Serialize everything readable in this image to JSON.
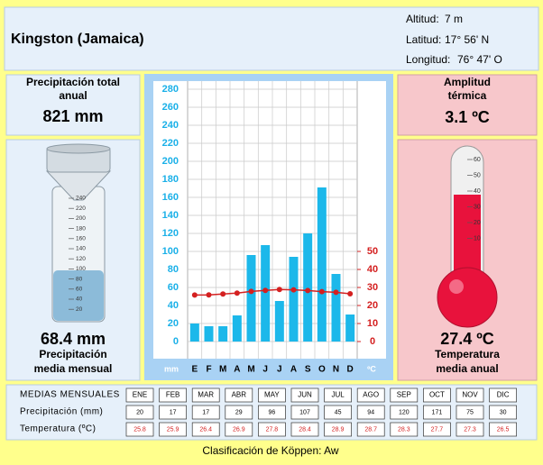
{
  "header": {
    "location": "Kingston (Jamaica)",
    "altitude_label": "Altitud:",
    "altitude": "7 m",
    "latitude_label": "Latitud:",
    "latitude": "17° 56' N",
    "longitude_label": "Longitud:",
    "longitude": "76° 47' O"
  },
  "precip_total": {
    "label_lines": [
      "Precipitación total",
      "anual"
    ],
    "value": "821 mm"
  },
  "amplitude": {
    "label_lines": [
      "Amplitud",
      "térmica"
    ],
    "value": "3.1 ºC"
  },
  "precip_mean": {
    "value": "68.4 mm",
    "label_lines": [
      "Precipitación",
      "media mensual"
    ],
    "gauge_ticks": [
      240,
      220,
      200,
      180,
      160,
      140,
      120,
      100,
      80,
      60,
      40,
      20
    ]
  },
  "temp_mean": {
    "value": "27.4 ºC",
    "label_lines": [
      "Temperatura",
      "media anual"
    ],
    "thermo_ticks": [
      60,
      50,
      40,
      30,
      20,
      10
    ]
  },
  "chart_data": {
    "type": "climograph",
    "categories": [
      "E",
      "F",
      "M",
      "A",
      "M",
      "J",
      "J",
      "A",
      "S",
      "O",
      "N",
      "D"
    ],
    "series": [
      {
        "name": "Precipitación (mm)",
        "color": "#1cb8ea",
        "values": [
          20,
          17,
          17,
          29,
          96,
          107,
          45,
          94,
          120,
          171,
          75,
          30
        ]
      },
      {
        "name": "Temperatura (ºC)",
        "color": "#d42020",
        "axis": "y2",
        "values": [
          25.8,
          25.9,
          26.4,
          26.9,
          27.8,
          28.4,
          28.9,
          28.7,
          28.3,
          27.7,
          27.3,
          26.5
        ]
      }
    ],
    "ylim": [
      0,
      280
    ],
    "yticks": [
      0,
      20,
      40,
      60,
      80,
      100,
      120,
      140,
      160,
      180,
      200,
      220,
      240,
      260,
      280
    ],
    "y2lim": [
      0,
      140
    ],
    "y2ticks": [
      0,
      10,
      20,
      30,
      40,
      50
    ],
    "y_label": "mm",
    "y2_label": "ºC",
    "grid": true
  },
  "table": {
    "title": "MEDIAS MENSUALES",
    "months": [
      "ENE",
      "FEB",
      "MAR",
      "ABR",
      "MAY",
      "JUN",
      "JUL",
      "AGO",
      "SEP",
      "OCT",
      "NOV",
      "DIC"
    ]
  },
  "footer": "Clasificación de Köppen: Aw"
}
